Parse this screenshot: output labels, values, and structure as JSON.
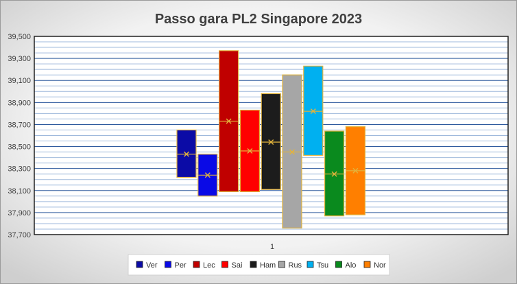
{
  "chart_data": {
    "type": "box",
    "title": "Passo gara PL2 Singapore 2023",
    "xlabel": "",
    "ylabel": "",
    "categories": [
      "1"
    ],
    "ylim": [
      37700,
      39500
    ],
    "yticks": [
      37700,
      37900,
      38100,
      38300,
      38500,
      38700,
      38900,
      39100,
      39300,
      39500
    ],
    "ytick_labels": [
      "37,700",
      "37,900",
      "38,100",
      "38,300",
      "38,500",
      "38,700",
      "38,900",
      "39,100",
      "39,300",
      "39,500"
    ],
    "grid": true,
    "legend_position": "bottom",
    "series": [
      {
        "name": "Ver",
        "color": "#0b0ba6",
        "low": 38220,
        "high": 38650,
        "mean": 38430,
        "median": 38430
      },
      {
        "name": "Per",
        "color": "#0a0ae6",
        "low": 38050,
        "high": 38430,
        "mean": 38240,
        "median": 38240
      },
      {
        "name": "Lec",
        "color": "#c00000",
        "low": 38090,
        "high": 39370,
        "mean": 38730,
        "median": 38730
      },
      {
        "name": "Sai",
        "color": "#ff0000",
        "low": 38090,
        "high": 38830,
        "mean": 38460,
        "median": 38460
      },
      {
        "name": "Ham",
        "color": "#1c1c1c",
        "low": 38110,
        "high": 38980,
        "mean": 38540,
        "median": 38540
      },
      {
        "name": "Rus",
        "color": "#a6a6a6",
        "low": 37760,
        "high": 39150,
        "mean": 38450,
        "median": 38450
      },
      {
        "name": "Tsu",
        "color": "#00b0f0",
        "low": 38420,
        "high": 39230,
        "mean": 38820,
        "median": 38820
      },
      {
        "name": "Alo",
        "color": "#0a8a1e",
        "low": 37870,
        "high": 38640,
        "mean": 38250,
        "median": 38250
      },
      {
        "name": "Nor",
        "color": "#ff7f00",
        "low": 37880,
        "high": 38680,
        "mean": 38280,
        "median": 38280
      }
    ]
  }
}
